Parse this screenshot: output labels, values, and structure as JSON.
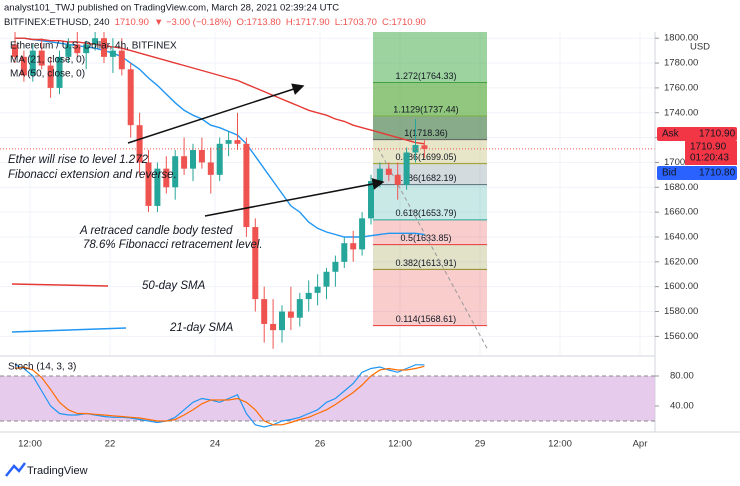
{
  "header": {
    "publisher": "analyst101_TWJ published on TradingView.com, March 28, 2021 02:39:24 UTC",
    "quote": [
      "BITFINEX:ETHUSD, 240",
      "1710.90",
      "▼ −3.00 (−0.18%)",
      "O:1713.80",
      "H:1717.90",
      "L:1703.70",
      "C:1710.90"
    ]
  },
  "footer": "TradingView",
  "chart_data": {
    "type": "candlestick",
    "legend": [
      "Ethereum / U.S. Dollar, 4h, BITFINEX",
      "MA (21, close, 0)",
      "MA (50, close, 0)"
    ],
    "currency": "USD",
    "ylim": [
      1545,
      1805
    ],
    "yticks": [
      {
        "value": 1560,
        "label": "1560.00"
      },
      {
        "value": 1580,
        "label": "1580.00"
      },
      {
        "value": 1600,
        "label": "1600.00"
      },
      {
        "value": 1620,
        "label": "1620.00"
      },
      {
        "value": 1640,
        "label": "1640.00"
      },
      {
        "value": 1660,
        "label": "1660.00"
      },
      {
        "value": 1680,
        "label": "1680.00"
      },
      {
        "value": 1700,
        "label": "1700.00"
      },
      {
        "value": 1720,
        "label": "1720.00"
      },
      {
        "value": 1740,
        "label": "1740.00"
      },
      {
        "value": 1760,
        "label": "1760.00"
      },
      {
        "value": 1780,
        "label": "1780.00"
      },
      {
        "value": 1800,
        "label": "1800.00"
      }
    ],
    "x_labels": [
      "12:00",
      "22",
      "24",
      "26",
      "12:00",
      "29",
      "12:00",
      "Apr"
    ],
    "up_color": "#26a69a",
    "down_color": "#ef5350",
    "candles": {
      "open": [
        1795,
        1785,
        1770,
        1790,
        1778,
        1760,
        1785,
        1795,
        1788,
        1795,
        1800,
        1785,
        1790,
        1775,
        1730,
        1700,
        1665,
        1695,
        1680,
        1705,
        1695,
        1710,
        1700,
        1690,
        1715,
        1718,
        1715,
        1648,
        1590,
        1570,
        1565,
        1580,
        1575,
        1590,
        1595,
        1600,
        1612,
        1620,
        1635,
        1630,
        1655,
        1685,
        1695,
        1690,
        1682,
        1708,
        1713.8
      ],
      "high": [
        1805,
        1790,
        1795,
        1800,
        1785,
        1790,
        1800,
        1805,
        1798,
        1805,
        1805,
        1800,
        1800,
        1780,
        1740,
        1710,
        1700,
        1705,
        1710,
        1720,
        1715,
        1720,
        1712,
        1720,
        1725,
        1740,
        1720,
        1655,
        1600,
        1590,
        1585,
        1600,
        1595,
        1605,
        1610,
        1615,
        1625,
        1640,
        1645,
        1660,
        1690,
        1700,
        1700,
        1700,
        1712,
        1735,
        1717.9
      ],
      "low": [
        1780,
        1765,
        1765,
        1775,
        1752,
        1755,
        1780,
        1785,
        1775,
        1790,
        1780,
        1772,
        1770,
        1720,
        1690,
        1660,
        1660,
        1675,
        1670,
        1690,
        1685,
        1695,
        1675,
        1685,
        1705,
        1710,
        1640,
        1580,
        1555,
        1550,
        1555,
        1565,
        1568,
        1580,
        1585,
        1590,
        1600,
        1615,
        1620,
        1625,
        1650,
        1680,
        1685,
        1670,
        1678,
        1700,
        1703.7
      ],
      "close": [
        1785,
        1770,
        1790,
        1778,
        1760,
        1785,
        1795,
        1788,
        1795,
        1800,
        1785,
        1790,
        1775,
        1730,
        1700,
        1665,
        1695,
        1680,
        1705,
        1695,
        1710,
        1700,
        1690,
        1715,
        1718,
        1715,
        1648,
        1590,
        1570,
        1565,
        1580,
        1575,
        1590,
        1595,
        1600,
        1612,
        1620,
        1635,
        1630,
        1655,
        1685,
        1695,
        1690,
        1682,
        1708,
        1714,
        1710.9
      ]
    },
    "series": [
      {
        "name": "MA (21, close, 0)",
        "color": "#2196f3",
        "values": [
          1800,
          1800,
          1799,
          1798,
          1797,
          1796,
          1795,
          1794,
          1793,
          1792,
          1790,
          1788,
          1785,
          1780,
          1775,
          1768,
          1762,
          1755,
          1748,
          1742,
          1738,
          1735,
          1730,
          1728,
          1725,
          1722,
          1715,
          1705,
          1695,
          1685,
          1675,
          1665,
          1660,
          1652,
          1647,
          1644,
          1642,
          1640,
          1640,
          1640,
          1641,
          1642,
          1643,
          1643,
          1643,
          1643,
          1642
        ]
      },
      {
        "name": "MA (50, close, 0)",
        "color": "#e53935",
        "values": [
          1800,
          1800,
          1799,
          1799,
          1798,
          1798,
          1797,
          1797,
          1796,
          1795,
          1794,
          1793,
          1792,
          1790,
          1788,
          1786,
          1784,
          1782,
          1780,
          1778,
          1776,
          1774,
          1772,
          1770,
          1768,
          1766,
          1763,
          1760,
          1757,
          1754,
          1751,
          1748,
          1745,
          1742,
          1740,
          1738,
          1735,
          1733,
          1730,
          1728,
          1726,
          1724,
          1722,
          1720,
          1718,
          1716,
          1715
        ]
      }
    ],
    "fibonacci": [
      {
        "value": 1764.33,
        "label": "1.272(1764.33)",
        "color": "#43a047"
      },
      {
        "value": 1737.44,
        "label": "1.1129(1737.44)",
        "color": "#7cb342"
      },
      {
        "value": 1718.36,
        "label": "1(1718.36)",
        "color": "#616161"
      },
      {
        "value": 1699.05,
        "label": "0.886(1699.05)",
        "color": "#9e9d24"
      },
      {
        "value": 1682.19,
        "label": "0.786(1682.19)",
        "color": "#546e7a"
      },
      {
        "value": 1653.79,
        "label": "0.618(1653.79)",
        "color": "#26a69a"
      },
      {
        "value": 1633.85,
        "label": "0.5(1633.85)",
        "color": "#e53935"
      },
      {
        "value": 1613.91,
        "label": "0.382(1613.91)",
        "color": "#8d8d28"
      },
      {
        "value": 1568.61,
        "label": "0.114(1568.61)",
        "color": "#e53935"
      }
    ],
    "annotations": [
      "Ether will rise to level 1.272",
      "Fibonacci extension and reverse.",
      "A retraced candle  body tested",
      "78.6% Fibonacci retracement level.",
      "50-day SMA",
      "21-day SMA"
    ],
    "price_tags": {
      "ask": "Ask",
      "ask_price": "1710.90",
      "last": "1710.90",
      "countdown": "01:20:43",
      "bid": "Bid",
      "bid_price": "1710.80"
    },
    "stochastic": {
      "title": "Stoch (14, 3, 3)",
      "ylim": [
        0,
        100
      ],
      "yticks": [
        {
          "value": 80,
          "label": "80.00"
        },
        {
          "value": 40,
          "label": "40.00"
        }
      ],
      "band": [
        20,
        80
      ],
      "series": [
        {
          "name": "%K",
          "color": "#2196f3",
          "values": [
            95,
            90,
            80,
            60,
            40,
            30,
            28,
            28,
            30,
            28,
            26,
            25,
            25,
            24,
            22,
            20,
            18,
            20,
            25,
            35,
            45,
            50,
            48,
            45,
            50,
            55,
            30,
            15,
            12,
            15,
            20,
            22,
            25,
            30,
            35,
            45,
            50,
            60,
            70,
            85,
            90,
            92,
            88,
            85,
            90,
            95,
            95
          ]
        },
        {
          "name": "%D",
          "color": "#ff6d00",
          "values": [
            90,
            92,
            88,
            78,
            62,
            45,
            35,
            30,
            30,
            29,
            28,
            27,
            26,
            25,
            24,
            22,
            20,
            20,
            22,
            28,
            35,
            43,
            48,
            48,
            48,
            50,
            45,
            35,
            20,
            15,
            15,
            18,
            22,
            25,
            30,
            35,
            42,
            50,
            58,
            68,
            80,
            88,
            90,
            88,
            88,
            90,
            93
          ]
        }
      ]
    }
  }
}
